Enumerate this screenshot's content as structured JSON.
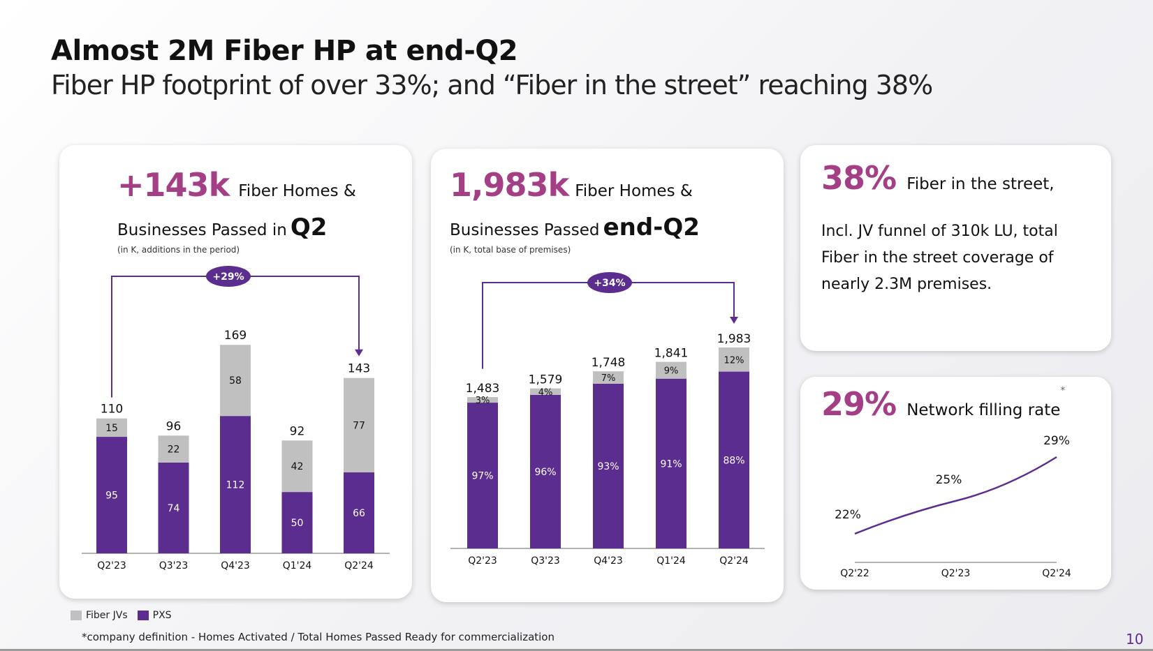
{
  "slide": {
    "title": "Almost 2M Fiber HP at end-Q2",
    "subtitle": "Fiber HP footprint of over 33%;  and “Fiber in the street” reaching 38%",
    "page_number": "10",
    "footnote": "*company definition - Homes Activated / Total Homes Passed Ready for commercialization",
    "colors": {
      "accent": "#a43f86",
      "pxs": "#5b2d8e",
      "fiber_jvs": "#c0c0c0"
    }
  },
  "legend": {
    "items": [
      {
        "label": "Fiber JVs",
        "color": "#c0c0c0"
      },
      {
        "label": "PXS",
        "color": "#5b2d8e"
      }
    ]
  },
  "card1": {
    "big": "+143k",
    "line1": "Fiber Homes &",
    "line2": "Businesses Passed in",
    "bold": "Q2",
    "note": "(in K, additions in the period)",
    "growth_badge": "+29%"
  },
  "card2": {
    "big": "1,983k",
    "line1": "Fiber Homes &",
    "line2": "Businesses Passed",
    "bold": "end-Q2",
    "note": "(in K, total base of premises)",
    "growth_badge": "+34%"
  },
  "card3": {
    "big": "38%",
    "headline": "Fiber in the street,",
    "body": [
      "Incl. JV funnel of  310k LU,  total",
      "Fiber in the street coverage of",
      "nearly 2.3M premises."
    ]
  },
  "card4": {
    "big": "29%",
    "headline": "Network filling rate",
    "asterisk": "*"
  },
  "chart_data": [
    {
      "type": "bar",
      "stacked": true,
      "title": "Fiber Homes & Businesses Passed in Q2 (additions in the period, K)",
      "categories": [
        "Q2'23",
        "Q3'23",
        "Q4'23",
        "Q1'24",
        "Q2'24"
      ],
      "series": [
        {
          "name": "PXS",
          "values": [
            95,
            74,
            112,
            50,
            66
          ],
          "labels": [
            "95",
            "74",
            "112",
            "50",
            "66"
          ]
        },
        {
          "name": "Fiber JVs",
          "values": [
            15,
            22,
            58,
            42,
            77
          ],
          "labels": [
            "15",
            "22",
            "58",
            "42",
            "77"
          ]
        }
      ],
      "totals": [
        "110",
        "96",
        "169",
        "92",
        "143"
      ],
      "total_values": [
        110,
        96,
        169,
        92,
        143
      ],
      "annotation": {
        "from": "Q2'23",
        "to": "Q2'24",
        "label": "+29%"
      },
      "ylim": [
        0,
        180
      ]
    },
    {
      "type": "bar",
      "stacked": true,
      "title": "Fiber Homes & Businesses Passed end-Q2 (total base of premises, K)",
      "categories": [
        "Q2'23",
        "Q3'23",
        "Q4'23",
        "Q1'24",
        "Q2'24"
      ],
      "total_values": [
        1483,
        1579,
        1748,
        1841,
        1983
      ],
      "totals": [
        "1,483",
        "1,579",
        "1,748",
        "1,841",
        "1,983"
      ],
      "series": [
        {
          "name": "PXS",
          "share_pct": [
            97,
            96,
            93,
            91,
            88
          ],
          "labels": [
            "97%",
            "96%",
            "93%",
            "91%",
            "88%"
          ]
        },
        {
          "name": "Fiber JVs",
          "share_pct": [
            3,
            4,
            7,
            9,
            12
          ],
          "labels": [
            "3%",
            "4%",
            "7%",
            "9%",
            "12%"
          ]
        }
      ],
      "annotation": {
        "from": "Q2'23",
        "to": "Q2'24",
        "label": "+34%"
      },
      "ylim": [
        0,
        2100
      ]
    },
    {
      "type": "line",
      "title": "Network filling rate",
      "categories": [
        "Q2'22",
        "Q2'23",
        "Q2'24"
      ],
      "values": [
        22,
        25,
        29
      ],
      "labels": [
        "22%",
        "25%",
        "29%"
      ],
      "ylim": [
        18,
        31
      ]
    }
  ]
}
